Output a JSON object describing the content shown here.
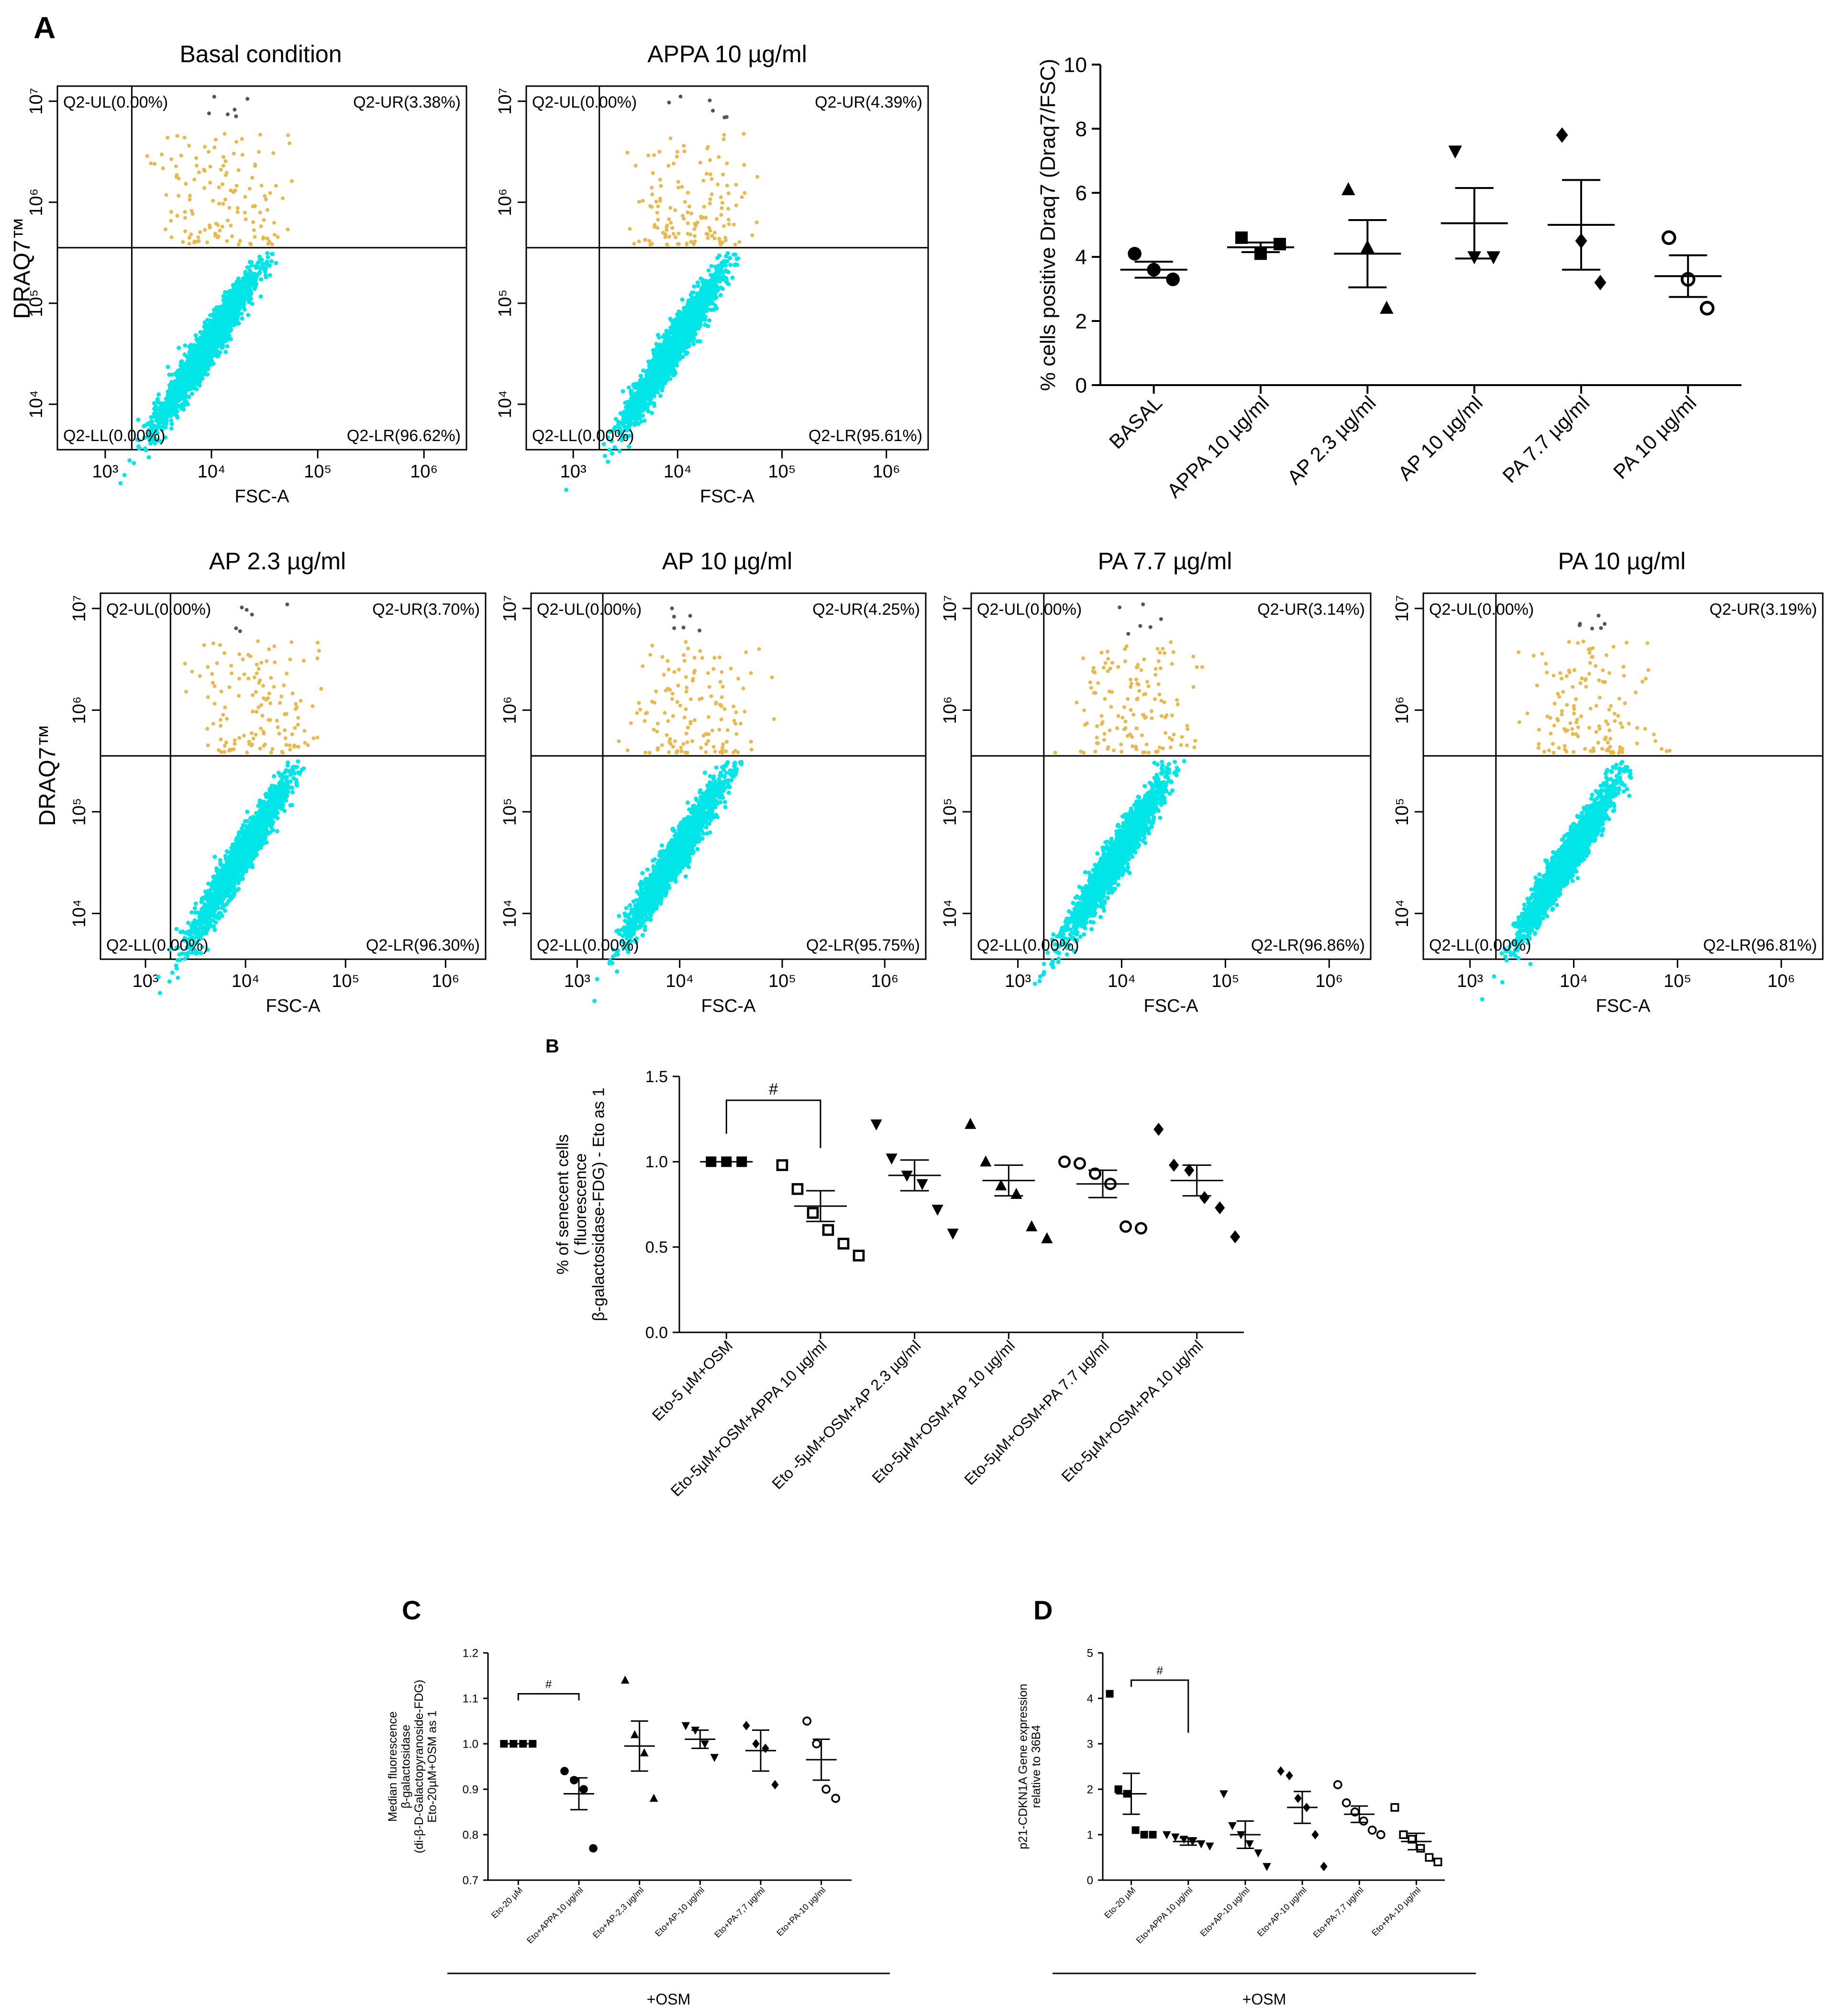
{
  "panel_labels": {
    "A": "A",
    "B": "B",
    "C": "C",
    "D": "D"
  },
  "chart_data": [
    {
      "id": "flow_basal",
      "type": "scatter",
      "title": "Basal condition",
      "xlabel": "FSC-A",
      "ylabel": "DRAQ7™",
      "x_ticks": [
        "10³",
        "10⁴",
        "10⁵",
        "10⁶"
      ],
      "y_ticks": [
        "10⁴",
        "10⁵",
        "10⁶",
        "10⁷"
      ],
      "quadrants": {
        "UL": "Q2-UL(0.00%)",
        "UR": "Q2-UR(3.38%)",
        "LL": "Q2-LL(0.00%)",
        "LR": "Q2-LR(96.62%)"
      },
      "colors": {
        "negative": "#00e5e8",
        "positive": "#e8b94e",
        "other": "#555555"
      }
    },
    {
      "id": "flow_appa10",
      "type": "scatter",
      "title": "APPA 10 µg/ml",
      "xlabel": "FSC-A",
      "ylabel": "",
      "x_ticks": [
        "10³",
        "10⁴",
        "10⁵",
        "10⁶"
      ],
      "y_ticks": [
        "10⁴",
        "10⁵",
        "10⁶",
        "10⁷"
      ],
      "quadrants": {
        "UL": "Q2-UL(0.00%)",
        "UR": "Q2-UR(4.39%)",
        "LL": "Q2-LL(0.00%)",
        "LR": "Q2-LR(95.61%)"
      }
    },
    {
      "id": "flow_ap23",
      "type": "scatter",
      "title": "AP 2.3 µg/ml",
      "xlabel": "FSC-A",
      "ylabel": "DRAQ7™",
      "x_ticks": [
        "10³",
        "10⁴",
        "10⁵",
        "10⁶"
      ],
      "y_ticks": [
        "10⁴",
        "10⁵",
        "10⁶",
        "10⁷"
      ],
      "quadrants": {
        "UL": "Q2-UL(0.00%)",
        "UR": "Q2-UR(3.70%)",
        "LL": "Q2-LL(0.00%)",
        "LR": "Q2-LR(96.30%)"
      }
    },
    {
      "id": "flow_ap10",
      "type": "scatter",
      "title": "AP 10 µg/ml",
      "xlabel": "FSC-A",
      "ylabel": "",
      "x_ticks": [
        "10³",
        "10⁴",
        "10⁵",
        "10⁶"
      ],
      "y_ticks": [
        "10⁴",
        "10⁵",
        "10⁶",
        "10⁷"
      ],
      "quadrants": {
        "UL": "Q2-UL(0.00%)",
        "UR": "Q2-UR(4.25%)",
        "LL": "Q2-LL(0.00%)",
        "LR": "Q2-LR(95.75%)"
      }
    },
    {
      "id": "flow_pa77",
      "type": "scatter",
      "title": "PA 7.7 µg/ml",
      "xlabel": "FSC-A",
      "ylabel": "",
      "x_ticks": [
        "10³",
        "10⁴",
        "10⁵",
        "10⁶"
      ],
      "y_ticks": [
        "10⁴",
        "10⁵",
        "10⁶",
        "10⁷"
      ],
      "quadrants": {
        "UL": "Q2-UL(0.00%)",
        "UR": "Q2-UR(3.14%)",
        "LL": "Q2-LL(0.00%)",
        "LR": "Q2-LR(96.86%)"
      }
    },
    {
      "id": "flow_pa10",
      "type": "scatter",
      "title": "PA 10 µg/ml",
      "xlabel": "FSC-A",
      "ylabel": "",
      "x_ticks": [
        "10³",
        "10⁴",
        "10⁵",
        "10⁶"
      ],
      "y_ticks": [
        "10⁴",
        "10⁵",
        "10⁶",
        "10⁷"
      ],
      "quadrants": {
        "UL": "Q2-UL(0.00%)",
        "UR": "Q2-UR(3.19%)",
        "LL": "Q2-LL(0.00%)",
        "LR": "Q2-LR(96.81%)"
      }
    },
    {
      "id": "A_summary",
      "type": "scatter",
      "title": "",
      "ylabel": "% cells positive Draq7 (Draq7/FSC)",
      "ylim": [
        0,
        10
      ],
      "y_ticks": [
        "0",
        "2",
        "4",
        "6",
        "8",
        "10"
      ],
      "categories": [
        "BASAL",
        "APPA 10 µg/ml",
        "AP 2.3 µg/ml",
        "AP 10 µg/ml",
        "PA 7.7 µg/ml",
        "PA 10 µg/ml"
      ],
      "markers": [
        "circle",
        "square",
        "triangle",
        "triangle-down",
        "diamond",
        "open-circle"
      ],
      "points": [
        [
          4.1,
          3.6,
          3.3
        ],
        [
          4.6,
          4.1,
          4.4
        ],
        [
          6.1,
          4.3,
          2.4
        ],
        [
          7.3,
          4.0,
          4.0
        ],
        [
          7.8,
          4.5,
          3.2
        ],
        [
          4.6,
          3.3,
          2.4
        ]
      ],
      "mean": [
        3.6,
        4.3,
        4.1,
        5.05,
        5.0,
        3.4
      ],
      "sem": [
        0.25,
        0.15,
        1.05,
        1.1,
        1.4,
        0.65
      ]
    },
    {
      "id": "B",
      "type": "scatter",
      "title": "",
      "ylabel": "% of senecent cells\n( fluorescence\nβ-galactosidase-FDG) - Eto as 1",
      "ylim": [
        0,
        1.5
      ],
      "y_ticks": [
        "0.0",
        "0.5",
        "1.0",
        "1.5"
      ],
      "categories": [
        "Eto-5 µM+OSM",
        "Eto-5µM+OSM+APPA 10 µg/ml",
        "Eto -5µM+OSM+AP 2.3 µg/ml",
        "Eto-5µM+OSM+AP 10 µg/ml",
        "Eto-5µM+OSM+PA 7.7 µg/ml",
        "Eto-5µM+OSM+PA 10 µg/ml"
      ],
      "markers": [
        "square",
        "open-square",
        "triangle-down",
        "triangle",
        "open-circle",
        "diamond"
      ],
      "points": [
        [
          1.0,
          1.0,
          1.0
        ],
        [
          0.98,
          0.84,
          0.7,
          0.6,
          0.52,
          0.45
        ],
        [
          1.22,
          1.02,
          0.92,
          0.87,
          0.72,
          0.58
        ],
        [
          1.22,
          1.0,
          0.86,
          0.81,
          0.62,
          0.55
        ],
        [
          1.0,
          0.99,
          0.93,
          0.87,
          0.62,
          0.61
        ],
        [
          1.19,
          0.98,
          0.95,
          0.79,
          0.73,
          0.56
        ]
      ],
      "mean": [
        1.0,
        0.74,
        0.92,
        0.89,
        0.87,
        0.89
      ],
      "sem": [
        0.0,
        0.09,
        0.09,
        0.09,
        0.08,
        0.09
      ],
      "significance": {
        "label": "#",
        "between": [
          0,
          1
        ]
      }
    },
    {
      "id": "C",
      "type": "scatter",
      "title": "",
      "ylabel": "Median fluorescence\nβ-galactosidase\n(di-β-D-Galactopyranoside-FDG)\nEto-20µM+OSM as 1",
      "ylim": [
        0.7,
        1.2
      ],
      "y_ticks": [
        "0.7",
        "0.8",
        "0.9",
        "1.0",
        "1.1",
        "1.2"
      ],
      "categories": [
        "Eto-20 µM",
        "Eto+APPA 10 µg/ml",
        "Eto+AP-2,3 µg/ml",
        "Eto+AP-10 µg/ml",
        "Eto+PA-7,7 µg/ml",
        "Eto+PA-10 µg/ml"
      ],
      "markers": [
        "square",
        "circle",
        "triangle",
        "triangle-down",
        "diamond",
        "open-circle"
      ],
      "points": [
        [
          1.0,
          1.0,
          1.0,
          1.0
        ],
        [
          0.94,
          0.92,
          0.9,
          0.77
        ],
        [
          1.14,
          1.02,
          0.98,
          0.88
        ],
        [
          1.04,
          1.03,
          1.0,
          0.97
        ],
        [
          1.04,
          1.0,
          0.99,
          0.91
        ],
        [
          1.05,
          1.0,
          0.9,
          0.88
        ]
      ],
      "mean": [
        1.0,
        0.89,
        0.995,
        1.01,
        0.985,
        0.965
      ],
      "sem": [
        0.0,
        0.035,
        0.055,
        0.02,
        0.045,
        0.045
      ],
      "group_label": "+OSM",
      "significance": {
        "label": "#",
        "between": [
          0,
          1
        ]
      }
    },
    {
      "id": "D",
      "type": "scatter",
      "title": "",
      "ylabel": "p21-CDKN1A Gene expression\nrelative to 36B4",
      "ylim": [
        0,
        5
      ],
      "y_ticks": [
        "0",
        "1",
        "2",
        "3",
        "4",
        "5"
      ],
      "categories": [
        "Eto-20 µM",
        "Eto+APPA 10 µg/ml",
        "Eto+AP-10 µg/ml",
        "Eto+AP-10 µg/ml",
        "Eto+PA-7,7 µg/ml",
        "Eto+PA-10 µg/ml"
      ],
      "markers": [
        "square",
        "triangle-down",
        "triangle-down",
        "diamond",
        "open-circle",
        "open-square"
      ],
      "points": [
        [
          4.1,
          2.0,
          1.9,
          1.1,
          1.0,
          1.0
        ],
        [
          1.0,
          0.95,
          0.9,
          0.85,
          0.8,
          0.75
        ],
        [
          1.9,
          1.2,
          1.0,
          0.8,
          0.6,
          0.3
        ],
        [
          2.4,
          2.3,
          1.8,
          1.6,
          1.0,
          0.3
        ],
        [
          2.1,
          1.7,
          1.5,
          1.3,
          1.1,
          1.0
        ],
        [
          1.6,
          1.0,
          0.9,
          0.7,
          0.5,
          0.4
        ]
      ],
      "mean": [
        1.9,
        0.85,
        1.0,
        1.6,
        1.45,
        0.85
      ],
      "sem": [
        0.45,
        0.08,
        0.3,
        0.35,
        0.18,
        0.18
      ],
      "group_label": "+OSM",
      "significance": {
        "label": "#",
        "between": [
          0,
          1
        ]
      }
    }
  ]
}
